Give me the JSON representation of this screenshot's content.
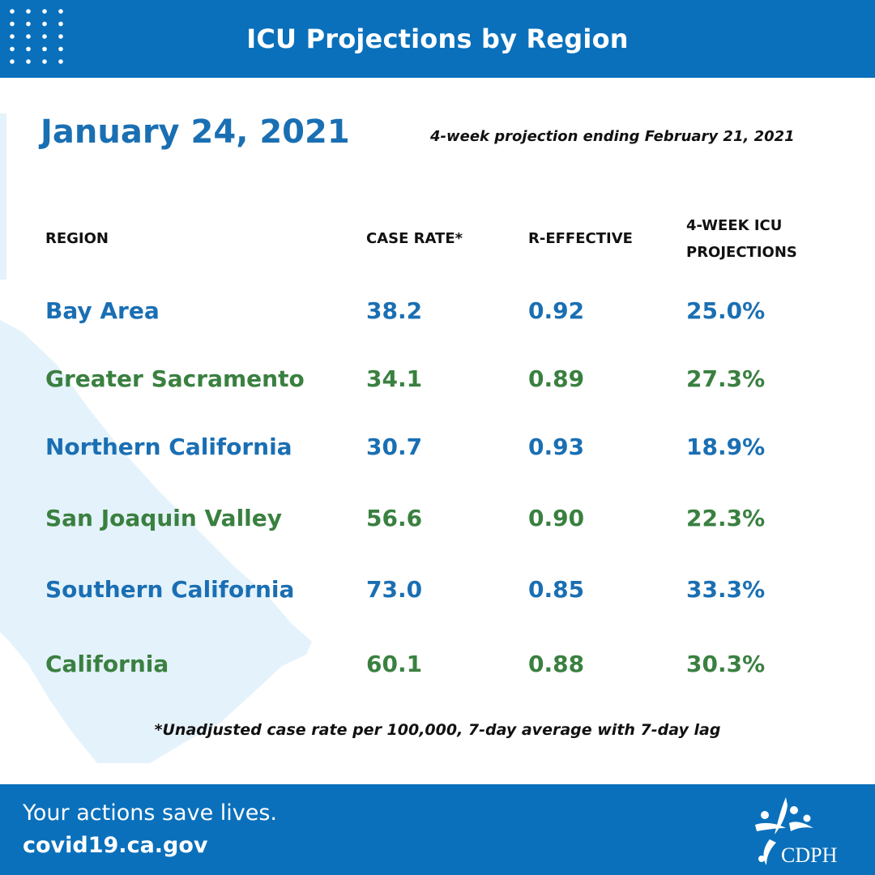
{
  "header": {
    "title": "ICU Projections by Region"
  },
  "date": "January 24, 2021",
  "projection_note": "4-week projection ending February 21, 2021",
  "table": {
    "columns": [
      "REGION",
      "CASE RATE*",
      "R-EFFECTIVE",
      "4-WEEK ICU",
      "PROJECTIONS"
    ],
    "rows": [
      {
        "region": "Bay Area",
        "case_rate": "38.2",
        "r_effective": "0.92",
        "icu": "25.0%",
        "color": "#1a6fb3"
      },
      {
        "region": "Greater Sacramento",
        "case_rate": "34.1",
        "r_effective": "0.89",
        "icu": "27.3%",
        "color": "#3a8040"
      },
      {
        "region": "Northern California",
        "case_rate": "30.7",
        "r_effective": "0.93",
        "icu": "18.9%",
        "color": "#1a6fb3"
      },
      {
        "region": "San Joaquin Valley",
        "case_rate": "56.6",
        "r_effective": "0.90",
        "icu": "22.3%",
        "color": "#3a8040"
      },
      {
        "region": "Southern California",
        "case_rate": "73.0",
        "r_effective": "0.85",
        "icu": "33.3%",
        "color": "#1a6fb3"
      },
      {
        "region": "California",
        "case_rate": "60.1",
        "r_effective": "0.88",
        "icu": "30.3%",
        "color": "#3a8040"
      }
    ]
  },
  "footnote": "*Unadjusted case rate per 100,000, 7-day average with 7-day lag",
  "footer": {
    "tagline": "Your actions save lives.",
    "website": "covid19.ca.gov",
    "logo_text": "CDPH"
  },
  "colors": {
    "brand_blue": "#0a70bb",
    "text_blue": "#1a6fb3",
    "text_green": "#3a8040",
    "map_fill": "#e4f2fb"
  },
  "icons": [
    "dot-grid-decoration",
    "california-map-outline",
    "cdph-logo"
  ]
}
